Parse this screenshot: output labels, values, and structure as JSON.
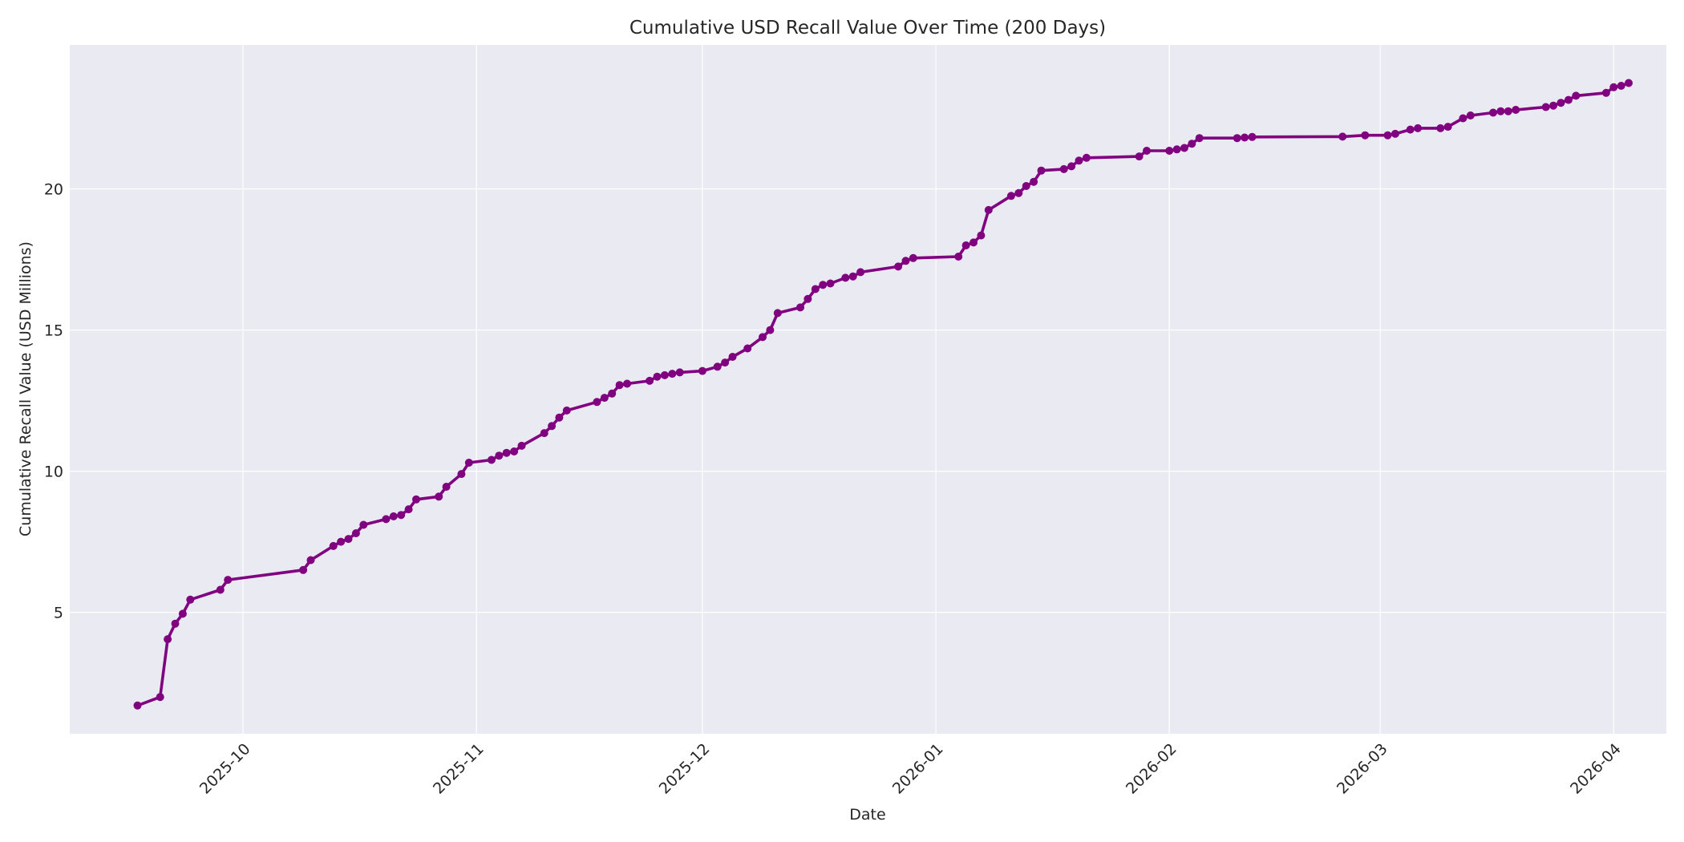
{
  "chart_data": {
    "type": "line",
    "title": "Cumulative USD Recall Value Over Time (200 Days)",
    "xlabel": "Date",
    "ylabel": "Cumulative Recall Value (USD Millions)",
    "xlim": [
      "2025-09-08",
      "2026-04-08"
    ],
    "ylim": [
      0.7,
      25.1
    ],
    "x_ticks": [
      "2025-10-01",
      "2025-11-01",
      "2025-12-01",
      "2026-01-01",
      "2026-02-01",
      "2026-03-01",
      "2026-04-01"
    ],
    "x_tick_labels": [
      "2025-10",
      "2025-11",
      "2025-12",
      "2026-01",
      "2026-02",
      "2026-03",
      "2026-04"
    ],
    "y_ticks": [
      5,
      10,
      15,
      20
    ],
    "y_tick_labels": [
      "5",
      "10",
      "15",
      "20"
    ],
    "grid": true,
    "colors": {
      "line": "#800080",
      "plot_bg": "#eaeaf2",
      "grid": "#ffffff"
    },
    "series": [
      {
        "x": [
          "2025-09-17",
          "2025-09-20",
          "2025-09-21",
          "2025-09-22",
          "2025-09-23",
          "2025-09-24",
          "2025-09-28",
          "2025-09-29",
          "2025-10-09",
          "2025-10-10",
          "2025-10-13",
          "2025-10-14",
          "2025-10-15",
          "2025-10-16",
          "2025-10-17",
          "2025-10-20",
          "2025-10-21",
          "2025-10-22",
          "2025-10-23",
          "2025-10-24",
          "2025-10-27",
          "2025-10-28",
          "2025-10-30",
          "2025-10-31",
          "2025-11-03",
          "2025-11-04",
          "2025-11-05",
          "2025-11-06",
          "2025-11-07",
          "2025-11-10",
          "2025-11-11",
          "2025-11-12",
          "2025-11-13",
          "2025-11-17",
          "2025-11-18",
          "2025-11-19",
          "2025-11-20",
          "2025-11-21",
          "2025-11-24",
          "2025-11-25",
          "2025-11-26",
          "2025-11-27",
          "2025-11-28",
          "2025-12-01",
          "2025-12-03",
          "2025-12-04",
          "2025-12-05",
          "2025-12-07",
          "2025-12-09",
          "2025-12-10",
          "2025-12-11",
          "2025-12-14",
          "2025-12-15",
          "2025-12-16",
          "2025-12-17",
          "2025-12-18",
          "2025-12-20",
          "2025-12-21",
          "2025-12-22",
          "2025-12-27",
          "2025-12-28",
          "2025-12-29",
          "2026-01-04",
          "2026-01-05",
          "2026-01-06",
          "2026-01-07",
          "2026-01-08",
          "2026-01-11",
          "2026-01-12",
          "2026-01-13",
          "2026-01-14",
          "2026-01-15",
          "2026-01-18",
          "2026-01-19",
          "2026-01-20",
          "2026-01-21",
          "2026-01-28",
          "2026-01-29",
          "2026-02-01",
          "2026-02-02",
          "2026-02-03",
          "2026-02-04",
          "2026-02-05",
          "2026-02-10",
          "2026-02-11",
          "2026-02-12",
          "2026-02-24",
          "2026-02-27",
          "2026-03-02",
          "2026-03-03",
          "2026-03-05",
          "2026-03-06",
          "2026-03-09",
          "2026-03-10",
          "2026-03-12",
          "2026-03-13",
          "2026-03-16",
          "2026-03-17",
          "2026-03-18",
          "2026-03-19",
          "2026-03-23",
          "2026-03-24",
          "2026-03-25",
          "2026-03-26",
          "2026-03-27",
          "2026-03-31",
          "2026-04-01",
          "2026-04-02",
          "2026-04-03"
        ],
        "values": [
          1.7,
          2.0,
          4.05,
          4.6,
          4.95,
          5.45,
          5.8,
          6.15,
          6.5,
          6.85,
          7.35,
          7.5,
          7.6,
          7.8,
          8.1,
          8.3,
          8.4,
          8.45,
          8.65,
          9.0,
          9.1,
          9.45,
          9.9,
          10.3,
          10.4,
          10.55,
          10.65,
          10.7,
          10.9,
          11.35,
          11.6,
          11.9,
          12.15,
          12.45,
          12.6,
          12.75,
          13.05,
          13.1,
          13.2,
          13.35,
          13.4,
          13.45,
          13.5,
          13.55,
          13.7,
          13.85,
          14.05,
          14.35,
          14.75,
          15.0,
          15.6,
          15.8,
          16.1,
          16.45,
          16.6,
          16.65,
          16.85,
          16.9,
          17.05,
          17.25,
          17.45,
          17.55,
          17.6,
          18.0,
          18.1,
          18.35,
          19.25,
          19.75,
          19.85,
          20.1,
          20.25,
          20.65,
          20.7,
          20.8,
          21.0,
          21.1,
          21.15,
          21.35,
          21.35,
          21.4,
          21.45,
          21.6,
          21.8,
          21.8,
          21.82,
          21.84,
          21.85,
          21.9,
          21.9,
          21.95,
          22.1,
          22.15,
          22.15,
          22.2,
          22.5,
          22.6,
          22.7,
          22.75,
          22.75,
          22.8,
          22.9,
          22.95,
          23.05,
          23.15,
          23.3,
          23.4,
          23.6,
          23.65,
          23.75
        ]
      }
    ]
  }
}
